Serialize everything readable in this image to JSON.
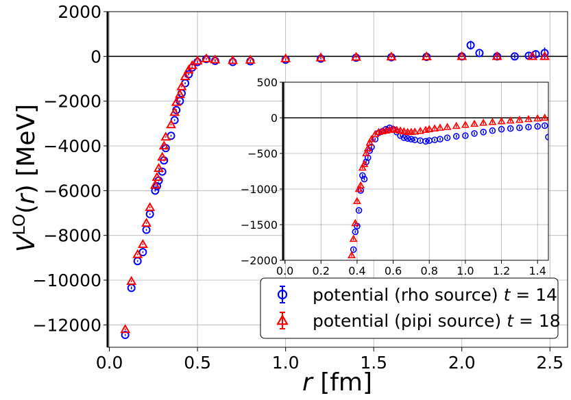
{
  "chart_data": [
    {
      "id": "main",
      "type": "scatter",
      "xlabel": "r [fm]",
      "ylabel": "V^LO(r) [MeV]",
      "xlim": [
        -0.01,
        2.6
      ],
      "ylim": [
        -13000,
        2000
      ],
      "xticks": [
        0.0,
        0.5,
        1.0,
        1.5,
        2.0,
        2.5
      ],
      "xtick_labels": [
        "0.0",
        "0.5",
        "1.0",
        "1.5",
        "2.0",
        "2.5"
      ],
      "yticks": [
        2000,
        0,
        -2000,
        -4000,
        -6000,
        -8000,
        -10000,
        -12000
      ],
      "ytick_labels": [
        "2000",
        "0",
        "−2000",
        "−4000",
        "−6000",
        "−8000",
        "−10000",
        "−12000"
      ],
      "grid": true,
      "zero_line": true,
      "legend_position": "lower-right",
      "series": [
        {
          "name": "potential (rho source) t = 14",
          "legend_prefix": "potential (rho source) ",
          "legend_var": "t",
          "legend_suffix": " = 14",
          "marker": "circle",
          "color": "#0000ff",
          "x": [
            0.09,
            0.125,
            0.16,
            0.19,
            0.21,
            0.23,
            0.26,
            0.27,
            0.28,
            0.3,
            0.31,
            0.32,
            0.35,
            0.37,
            0.38,
            0.4,
            0.41,
            0.43,
            0.45,
            0.47,
            0.5,
            0.55,
            0.6,
            0.7,
            0.8,
            1.0,
            1.2,
            1.4,
            1.6,
            1.8,
            2.0,
            2.05,
            2.1,
            2.2,
            2.3,
            2.38,
            2.42,
            2.47
          ],
          "y": [
            -12450,
            -10350,
            -9150,
            -8750,
            -7750,
            -7050,
            -6000,
            -5800,
            -5550,
            -5150,
            -4650,
            -4100,
            -3550,
            -2850,
            -2400,
            -2000,
            -1650,
            -1200,
            -800,
            -500,
            -250,
            -120,
            -200,
            -250,
            -220,
            -150,
            -100,
            -60,
            -40,
            -20,
            0,
            500,
            150,
            0,
            0,
            30,
            100,
            150
          ],
          "err": [
            40,
            60,
            40,
            40,
            40,
            40,
            40,
            40,
            40,
            40,
            40,
            40,
            40,
            40,
            40,
            40,
            40,
            40,
            40,
            40,
            40,
            30,
            30,
            30,
            30,
            30,
            30,
            30,
            30,
            30,
            30,
            200,
            100,
            100,
            100,
            150,
            150,
            250
          ]
        },
        {
          "name": "potential (pipi source) t = 18",
          "legend_prefix": "potential (pipi source) ",
          "legend_var": "t",
          "legend_suffix": " = 18",
          "marker": "triangle",
          "color": "#ff0000",
          "x": [
            0.09,
            0.125,
            0.16,
            0.19,
            0.21,
            0.23,
            0.26,
            0.27,
            0.28,
            0.3,
            0.31,
            0.32,
            0.35,
            0.37,
            0.38,
            0.4,
            0.41,
            0.43,
            0.45,
            0.47,
            0.5,
            0.55,
            0.6,
            0.7,
            0.8,
            1.0,
            1.2,
            1.4,
            1.6,
            1.8,
            2.0,
            2.2,
            2.4,
            2.47
          ],
          "y": [
            -12200,
            -10050,
            -8850,
            -8400,
            -7450,
            -6750,
            -5750,
            -5400,
            -5000,
            -4500,
            -4000,
            -3600,
            -3050,
            -2500,
            -2050,
            -1700,
            -1350,
            -900,
            -600,
            -400,
            -200,
            -100,
            -150,
            -180,
            -160,
            -100,
            -60,
            -30,
            -20,
            -10,
            0,
            0,
            0,
            0
          ],
          "err": [
            40,
            40,
            40,
            40,
            40,
            40,
            40,
            40,
            40,
            40,
            40,
            40,
            40,
            40,
            40,
            40,
            40,
            40,
            40,
            40,
            30,
            30,
            30,
            30,
            30,
            30,
            30,
            30,
            30,
            30,
            30,
            30,
            40,
            40
          ]
        }
      ]
    },
    {
      "id": "inset",
      "type": "scatter",
      "xlabel": "",
      "ylabel": "",
      "xlim": [
        -0.01,
        1.46
      ],
      "ylim": [
        -2000,
        500
      ],
      "xticks": [
        0.0,
        0.2,
        0.4,
        0.6,
        0.8,
        1.0,
        1.2,
        1.4
      ],
      "xtick_labels": [
        "0.0",
        "0.2",
        "0.4",
        "0.6",
        "0.8",
        "1.0",
        "1.2",
        "1.4"
      ],
      "yticks": [
        500,
        0,
        -500,
        -1000,
        -1500,
        -2000
      ],
      "ytick_labels": [
        "500",
        "0",
        "−500",
        "−1000",
        "−1500",
        "−2000"
      ],
      "grid": true,
      "zero_line": true,
      "series": [
        {
          "name": "potential (rho source) t = 14",
          "marker": "circle",
          "color": "#0000ff",
          "x": [
            0.38,
            0.39,
            0.4,
            0.41,
            0.42,
            0.43,
            0.44,
            0.45,
            0.46,
            0.47,
            0.48,
            0.5,
            0.52,
            0.54,
            0.56,
            0.58,
            0.6,
            0.62,
            0.64,
            0.66,
            0.68,
            0.7,
            0.72,
            0.75,
            0.78,
            0.8,
            0.83,
            0.86,
            0.9,
            0.95,
            1.0,
            1.05,
            1.1,
            1.15,
            1.2,
            1.25,
            1.3,
            1.35,
            1.4,
            1.44,
            1.46
          ],
          "y": [
            -1850,
            -1600,
            -1520,
            -1300,
            -1020,
            -810,
            -860,
            -620,
            -560,
            -460,
            -410,
            -300,
            -210,
            -190,
            -160,
            -140,
            -160,
            -200,
            -250,
            -280,
            -290,
            -300,
            -310,
            -320,
            -330,
            -320,
            -310,
            -300,
            -280,
            -260,
            -250,
            -220,
            -200,
            -180,
            -160,
            -150,
            -140,
            -130,
            -120,
            -110,
            -270
          ],
          "err": [
            20,
            20,
            20,
            20,
            20,
            20,
            20,
            20,
            20,
            20,
            20,
            20,
            20,
            20,
            20,
            20,
            20,
            20,
            20,
            20,
            20,
            20,
            20,
            20,
            20,
            20,
            20,
            20,
            20,
            20,
            20,
            20,
            20,
            20,
            20,
            20,
            20,
            20,
            20,
            20,
            40
          ]
        },
        {
          "name": "potential (pipi source) t = 18",
          "marker": "triangle",
          "color": "#ff0000",
          "x": [
            0.37,
            0.38,
            0.39,
            0.4,
            0.41,
            0.42,
            0.43,
            0.44,
            0.45,
            0.46,
            0.47,
            0.48,
            0.5,
            0.52,
            0.54,
            0.56,
            0.58,
            0.6,
            0.62,
            0.64,
            0.66,
            0.68,
            0.7,
            0.72,
            0.75,
            0.78,
            0.8,
            0.83,
            0.86,
            0.9,
            0.95,
            1.0,
            1.05,
            1.1,
            1.15,
            1.2,
            1.25,
            1.3,
            1.35,
            1.4,
            1.44
          ],
          "y": [
            -1930,
            -1700,
            -1480,
            -1170,
            -1000,
            -950,
            -700,
            -650,
            -500,
            -430,
            -350,
            -300,
            -230,
            -200,
            -190,
            -180,
            -170,
            -160,
            -170,
            -180,
            -190,
            -200,
            -200,
            -195,
            -185,
            -170,
            -160,
            -150,
            -140,
            -130,
            -115,
            -100,
            -85,
            -70,
            -60,
            -50,
            -40,
            -30,
            -20,
            -10,
            0
          ],
          "err": [
            20,
            20,
            20,
            20,
            20,
            20,
            20,
            20,
            20,
            20,
            20,
            20,
            20,
            20,
            20,
            20,
            20,
            20,
            20,
            20,
            20,
            20,
            20,
            20,
            20,
            20,
            20,
            20,
            20,
            20,
            20,
            20,
            20,
            20,
            20,
            20,
            20,
            20,
            20,
            20,
            20
          ]
        }
      ]
    }
  ]
}
